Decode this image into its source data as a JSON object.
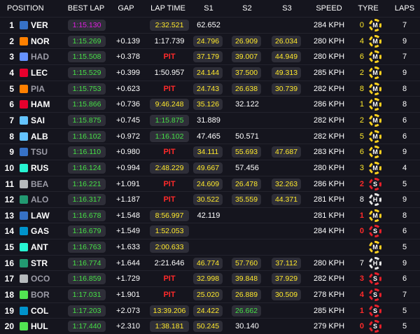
{
  "header": {
    "position": "POSITION",
    "best_lap": "BEST LAP",
    "gap": "GAP",
    "lap_time": "LAP TIME",
    "s1": "S1",
    "s2": "S2",
    "s3": "S3",
    "speed": "SPEED",
    "tyre": "TYRE",
    "laps": "LAPS"
  },
  "colors": {
    "mclaren": "#ff8000",
    "redbull": "#3671c6",
    "haas": "#b6babd",
    "ferrari": "#e8002d",
    "mercedes": "#27f4d2",
    "williams": "#64c4ff",
    "rb": "#6692ff",
    "aston": "#229971",
    "alpine": "#0093cc",
    "sauber": "#52e252"
  },
  "rows": [
    {
      "pos": "1",
      "driver": "VER",
      "team": "redbull",
      "dim": false,
      "best": "1:15.130",
      "best_c": "purple",
      "gap": "",
      "lap": "2:32.521",
      "lap_c": "yellow",
      "lap_pill": true,
      "s1": "62.652",
      "s1_c": "white",
      "s2": "",
      "s2_c": "white",
      "s3": "",
      "s3_c": "white",
      "speed": "284 KPH",
      "tyre_n": "0",
      "tyre": "M",
      "tyre_type": "medium",
      "tyre_n_c": "yellow",
      "laps": "7"
    },
    {
      "pos": "2",
      "driver": "NOR",
      "team": "mclaren",
      "dim": false,
      "best": "1:15.269",
      "best_c": "green",
      "gap": "+0.139",
      "lap": "1:17.739",
      "lap_c": "white",
      "lap_pill": false,
      "s1": "24.796",
      "s1_c": "yellow",
      "s2": "26.909",
      "s2_c": "yellow",
      "s3": "26.034",
      "s3_c": "yellow",
      "speed": "280 KPH",
      "tyre_n": "4",
      "tyre": "M",
      "tyre_type": "medium",
      "tyre_n_c": "yellow",
      "laps": "9"
    },
    {
      "pos": "3",
      "driver": "HAD",
      "team": "rb",
      "dim": true,
      "best": "1:15.508",
      "best_c": "green",
      "gap": "+0.378",
      "lap": "PIT",
      "lap_c": "red",
      "lap_pill": false,
      "s1": "37.179",
      "s1_c": "yellow",
      "s2": "39.007",
      "s2_c": "yellow",
      "s3": "44.949",
      "s3_c": "yellow",
      "speed": "280 KPH",
      "tyre_n": "6",
      "tyre": "M",
      "tyre_type": "medium",
      "tyre_n_c": "yellow",
      "laps": "7"
    },
    {
      "pos": "4",
      "driver": "LEC",
      "team": "ferrari",
      "dim": false,
      "best": "1:15.529",
      "best_c": "green",
      "gap": "+0.399",
      "lap": "1:50.957",
      "lap_c": "white",
      "lap_pill": false,
      "s1": "24.144",
      "s1_c": "yellow",
      "s2": "37.500",
      "s2_c": "yellow",
      "s3": "49.313",
      "s3_c": "yellow",
      "speed": "285 KPH",
      "tyre_n": "2",
      "tyre": "M",
      "tyre_type": "medium",
      "tyre_n_c": "yellow",
      "laps": "9"
    },
    {
      "pos": "5",
      "driver": "PIA",
      "team": "mclaren",
      "dim": true,
      "best": "1:15.753",
      "best_c": "green",
      "gap": "+0.623",
      "lap": "PIT",
      "lap_c": "red",
      "lap_pill": false,
      "s1": "24.743",
      "s1_c": "yellow",
      "s2": "26.638",
      "s2_c": "yellow",
      "s3": "30.739",
      "s3_c": "yellow",
      "speed": "282 KPH",
      "tyre_n": "8",
      "tyre": "M",
      "tyre_type": "medium",
      "tyre_n_c": "yellow",
      "laps": "8"
    },
    {
      "pos": "6",
      "driver": "HAM",
      "team": "ferrari",
      "dim": false,
      "best": "1:15.866",
      "best_c": "green",
      "gap": "+0.736",
      "lap": "9:46.248",
      "lap_c": "yellow",
      "lap_pill": true,
      "s1": "35.126",
      "s1_c": "yellow",
      "s2": "32.122",
      "s2_c": "white",
      "s3": "",
      "s3_c": "white",
      "speed": "286 KPH",
      "tyre_n": "1",
      "tyre": "M",
      "tyre_type": "medium",
      "tyre_n_c": "yellow",
      "laps": "8"
    },
    {
      "pos": "7",
      "driver": "SAI",
      "team": "williams",
      "dim": false,
      "best": "1:15.875",
      "best_c": "green",
      "gap": "+0.745",
      "lap": "1:15.875",
      "lap_c": "green",
      "lap_pill": true,
      "s1": "31.889",
      "s1_c": "white",
      "s2": "",
      "s2_c": "white",
      "s3": "",
      "s3_c": "white",
      "speed": "282 KPH",
      "tyre_n": "2",
      "tyre": "M",
      "tyre_type": "medium",
      "tyre_n_c": "yellow",
      "laps": "6"
    },
    {
      "pos": "8",
      "driver": "ALB",
      "team": "williams",
      "dim": false,
      "best": "1:16.102",
      "best_c": "green",
      "gap": "+0.972",
      "lap": "1:16.102",
      "lap_c": "green",
      "lap_pill": true,
      "s1": "47.465",
      "s1_c": "white",
      "s2": "50.571",
      "s2_c": "white",
      "s3": "",
      "s3_c": "white",
      "speed": "282 KPH",
      "tyre_n": "5",
      "tyre": "M",
      "tyre_type": "medium",
      "tyre_n_c": "yellow",
      "laps": "6"
    },
    {
      "pos": "9",
      "driver": "TSU",
      "team": "redbull",
      "dim": true,
      "best": "1:16.110",
      "best_c": "green",
      "gap": "+0.980",
      "lap": "PIT",
      "lap_c": "red",
      "lap_pill": false,
      "s1": "34.111",
      "s1_c": "yellow",
      "s2": "55.693",
      "s2_c": "yellow",
      "s3": "47.687",
      "s3_c": "yellow",
      "speed": "283 KPH",
      "tyre_n": "6",
      "tyre": "M",
      "tyre_type": "medium",
      "tyre_n_c": "yellow",
      "laps": "9"
    },
    {
      "pos": "10",
      "driver": "RUS",
      "team": "mercedes",
      "dim": false,
      "best": "1:16.124",
      "best_c": "green",
      "gap": "+0.994",
      "lap": "2:48.229",
      "lap_c": "yellow",
      "lap_pill": true,
      "s1": "49.667",
      "s1_c": "yellow",
      "s2": "57.456",
      "s2_c": "white",
      "s3": "",
      "s3_c": "white",
      "speed": "280 KPH",
      "tyre_n": "3",
      "tyre": "M",
      "tyre_type": "medium",
      "tyre_n_c": "yellow",
      "laps": "4"
    },
    {
      "pos": "11",
      "driver": "BEA",
      "team": "haas",
      "dim": true,
      "best": "1:16.221",
      "best_c": "green",
      "gap": "+1.091",
      "lap": "PIT",
      "lap_c": "red",
      "lap_pill": false,
      "s1": "24.609",
      "s1_c": "yellow",
      "s2": "26.478",
      "s2_c": "yellow",
      "s3": "32.263",
      "s3_c": "yellow",
      "speed": "286 KPH",
      "tyre_n": "2",
      "tyre": "S",
      "tyre_type": "soft",
      "tyre_n_c": "red",
      "laps": "5"
    },
    {
      "pos": "12",
      "driver": "ALO",
      "team": "aston",
      "dim": true,
      "best": "1:16.317",
      "best_c": "green",
      "gap": "+1.187",
      "lap": "PIT",
      "lap_c": "red",
      "lap_pill": false,
      "s1": "30.522",
      "s1_c": "yellow",
      "s2": "35.559",
      "s2_c": "yellow",
      "s3": "44.371",
      "s3_c": "yellow",
      "speed": "281 KPH",
      "tyre_n": "8",
      "tyre": "H",
      "tyre_type": "hard",
      "tyre_n_c": "white",
      "laps": "9"
    },
    {
      "pos": "13",
      "driver": "LAW",
      "team": "redbull",
      "dim": false,
      "best": "1:16.678",
      "best_c": "green",
      "gap": "+1.548",
      "lap": "8:56.997",
      "lap_c": "yellow",
      "lap_pill": true,
      "s1": "42.119",
      "s1_c": "white",
      "s2": "",
      "s2_c": "white",
      "s3": "",
      "s3_c": "white",
      "speed": "281 KPH",
      "tyre_n": "1",
      "tyre": "M",
      "tyre_type": "medium",
      "tyre_n_c": "red",
      "laps": "8"
    },
    {
      "pos": "14",
      "driver": "GAS",
      "team": "alpine",
      "dim": false,
      "best": "1:16.679",
      "best_c": "green",
      "gap": "+1.549",
      "lap": "1:52.053",
      "lap_c": "yellow",
      "lap_pill": true,
      "s1": "",
      "s1_c": "white",
      "s2": "",
      "s2_c": "white",
      "s3": "",
      "s3_c": "white",
      "speed": "284 KPH",
      "tyre_n": "0",
      "tyre": "S",
      "tyre_type": "soft",
      "tyre_n_c": "red",
      "laps": "6"
    },
    {
      "pos": "15",
      "driver": "ANT",
      "team": "mercedes",
      "dim": false,
      "best": "1:16.763",
      "best_c": "green",
      "gap": "+1.633",
      "lap": "2:00.633",
      "lap_c": "yellow",
      "lap_pill": true,
      "s1": "",
      "s1_c": "white",
      "s2": "",
      "s2_c": "white",
      "s3": "",
      "s3_c": "white",
      "speed": "",
      "tyre_n": "",
      "tyre": "M",
      "tyre_type": "medium",
      "tyre_n_c": "yellow",
      "laps": "5"
    },
    {
      "pos": "16",
      "driver": "STR",
      "team": "aston",
      "dim": false,
      "best": "1:16.774",
      "best_c": "green",
      "gap": "+1.644",
      "lap": "2:21.646",
      "lap_c": "white",
      "lap_pill": false,
      "s1": "46.774",
      "s1_c": "yellow",
      "s2": "57.760",
      "s2_c": "yellow",
      "s3": "37.112",
      "s3_c": "yellow",
      "speed": "280 KPH",
      "tyre_n": "7",
      "tyre": "H",
      "tyre_type": "hard",
      "tyre_n_c": "white",
      "laps": "9"
    },
    {
      "pos": "17",
      "driver": "OCO",
      "team": "haas",
      "dim": true,
      "best": "1:16.859",
      "best_c": "green",
      "gap": "+1.729",
      "lap": "PIT",
      "lap_c": "red",
      "lap_pill": false,
      "s1": "32.998",
      "s1_c": "yellow",
      "s2": "39.848",
      "s2_c": "yellow",
      "s3": "37.929",
      "s3_c": "yellow",
      "speed": "282 KPH",
      "tyre_n": "3",
      "tyre": "S",
      "tyre_type": "soft",
      "tyre_n_c": "red",
      "laps": "6"
    },
    {
      "pos": "18",
      "driver": "BOR",
      "team": "sauber",
      "dim": true,
      "best": "1:17.031",
      "best_c": "green",
      "gap": "+1.901",
      "lap": "PIT",
      "lap_c": "red",
      "lap_pill": false,
      "s1": "25.020",
      "s1_c": "yellow",
      "s2": "26.889",
      "s2_c": "yellow",
      "s3": "30.509",
      "s3_c": "yellow",
      "speed": "278 KPH",
      "tyre_n": "4",
      "tyre": "S",
      "tyre_type": "soft",
      "tyre_n_c": "red",
      "laps": "7"
    },
    {
      "pos": "19",
      "driver": "COL",
      "team": "alpine",
      "dim": false,
      "best": "1:17.203",
      "best_c": "green",
      "gap": "+2.073",
      "lap": "13:39.206",
      "lap_c": "yellow",
      "lap_pill": true,
      "s1": "24.422",
      "s1_c": "yellow",
      "s2": "26.662",
      "s2_c": "green",
      "s3": "",
      "s3_c": "white",
      "speed": "285 KPH",
      "tyre_n": "1",
      "tyre": "S",
      "tyre_type": "soft",
      "tyre_n_c": "red",
      "laps": "5"
    },
    {
      "pos": "20",
      "driver": "HUL",
      "team": "sauber",
      "dim": false,
      "best": "1:17.440",
      "best_c": "green",
      "gap": "+2.310",
      "lap": "1:38.181",
      "lap_c": "yellow",
      "lap_pill": true,
      "s1": "50.245",
      "s1_c": "yellow",
      "s2": "30.140",
      "s2_c": "white",
      "s3": "",
      "s3_c": "white",
      "speed": "279 KPH",
      "tyre_n": "0",
      "tyre": "S",
      "tyre_type": "soft",
      "tyre_n_c": "red",
      "laps": "5"
    }
  ]
}
